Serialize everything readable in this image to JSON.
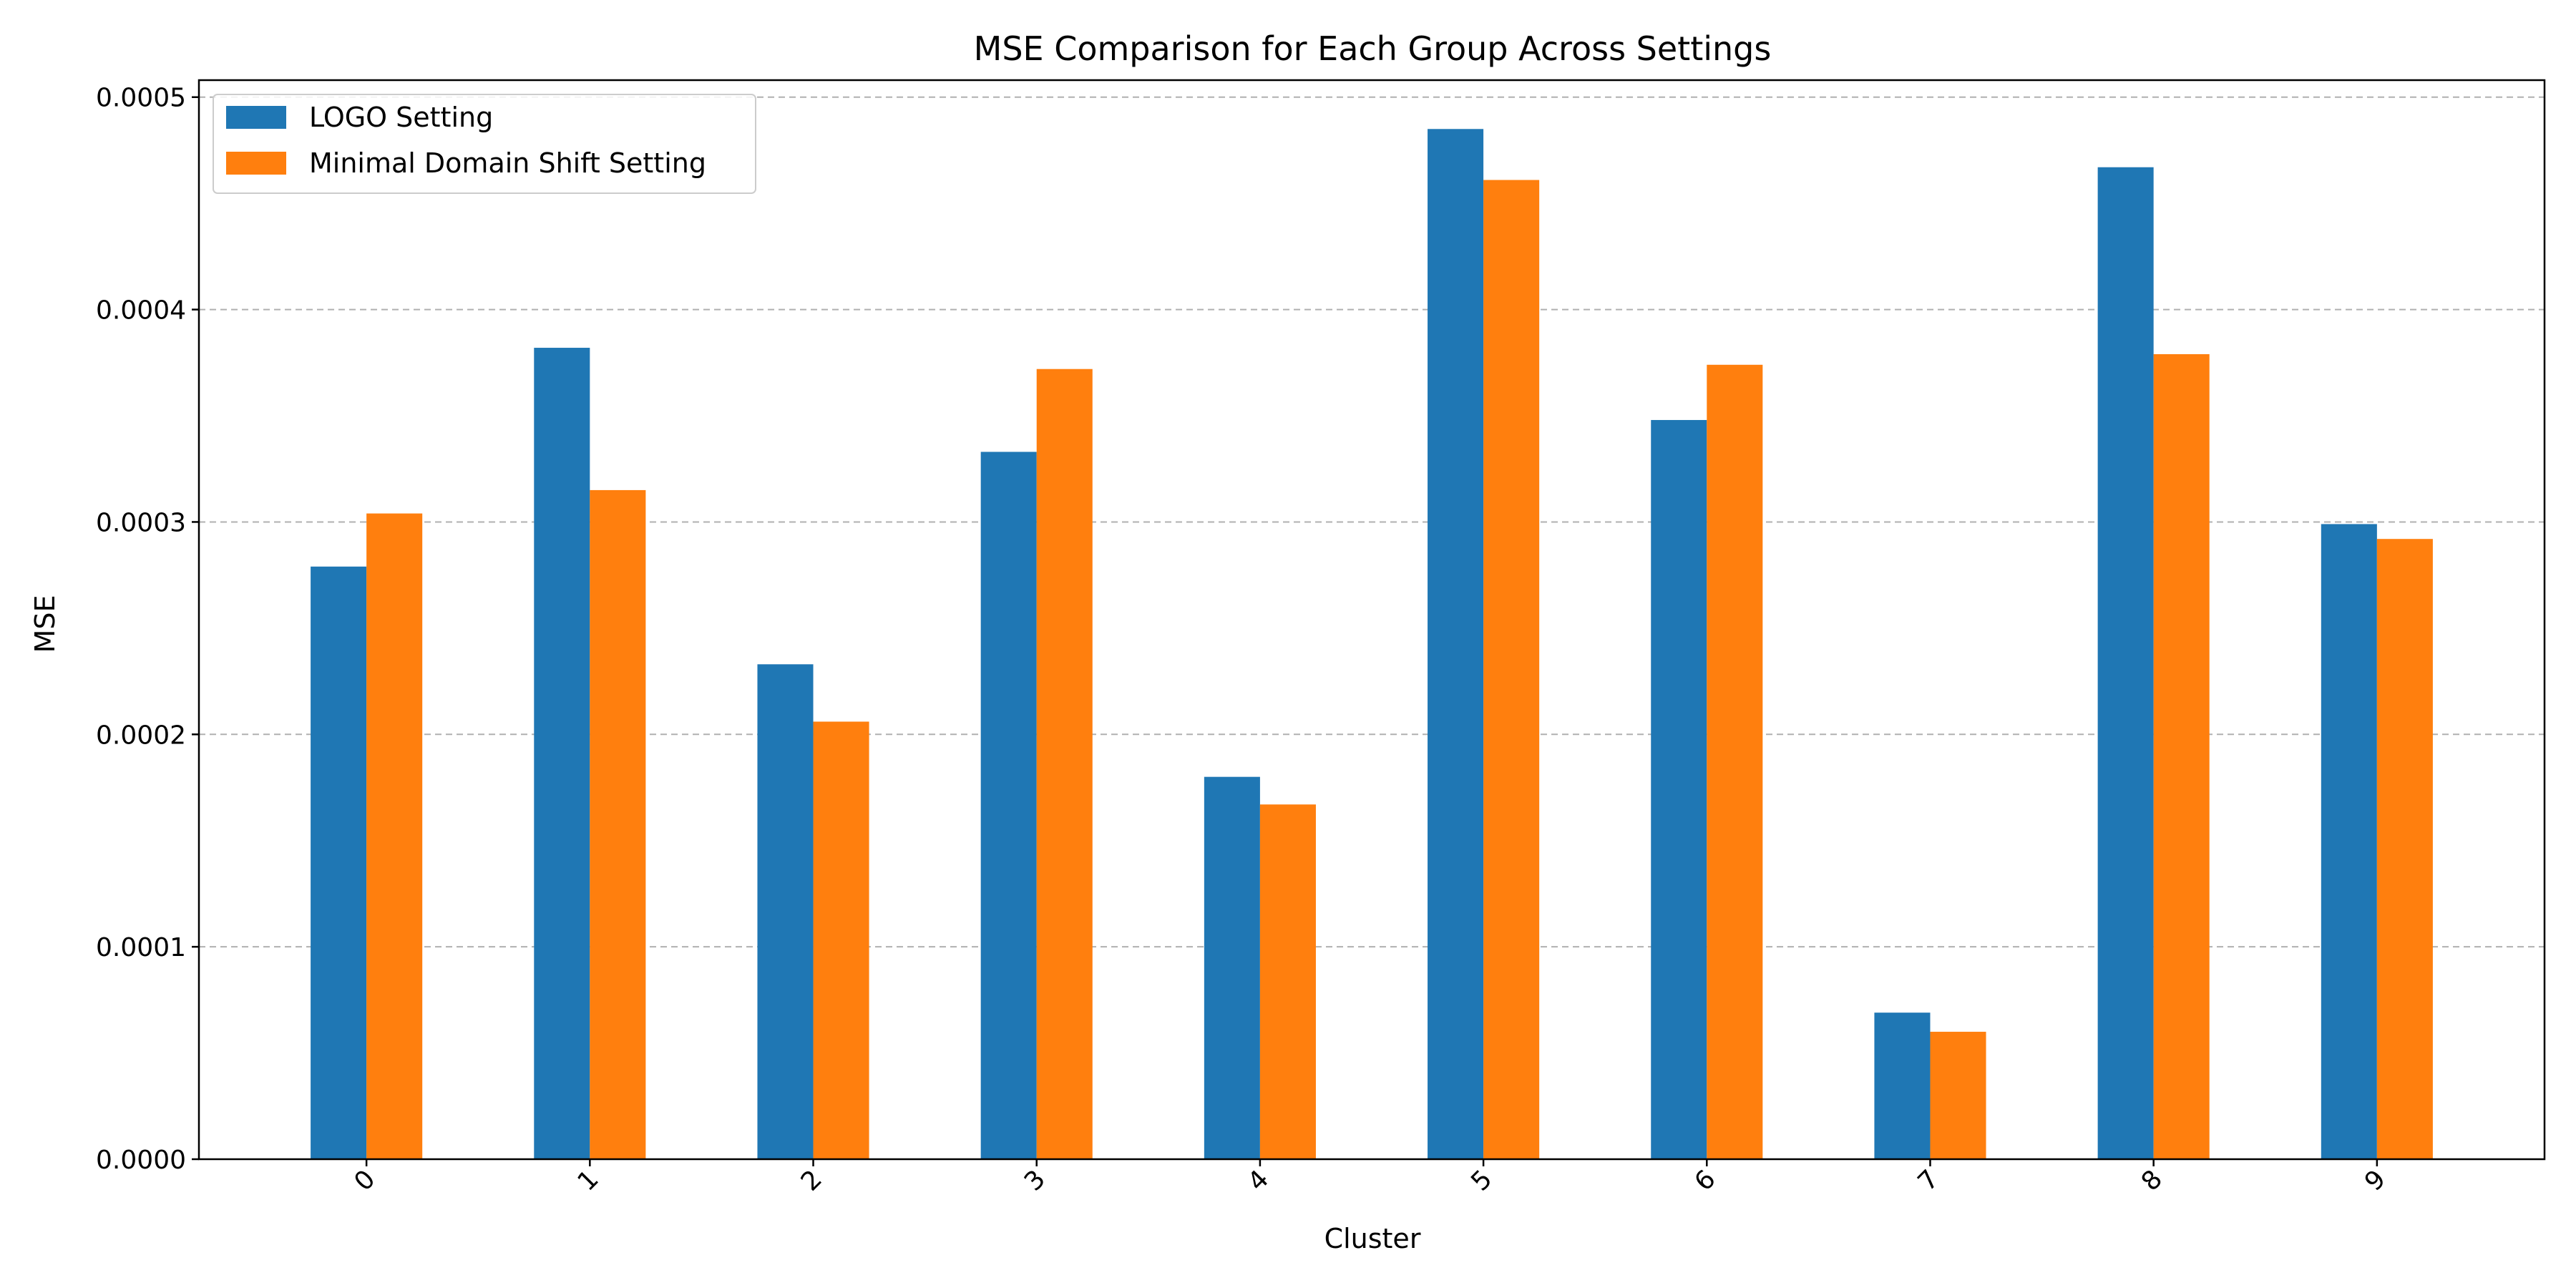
{
  "chart_data": {
    "type": "bar",
    "title": "MSE Comparison for Each Group Across Settings",
    "xlabel": "Cluster",
    "ylabel": "MSE",
    "categories": [
      "0",
      "1",
      "2",
      "3",
      "4",
      "5",
      "6",
      "7",
      "8",
      "9"
    ],
    "series": [
      {
        "name": "LOGO Setting",
        "color": "#1f77b4",
        "values": [
          0.000279,
          0.000382,
          0.000233,
          0.000333,
          0.00018,
          0.000485,
          0.000348,
          6.9e-05,
          0.000467,
          0.000299
        ]
      },
      {
        "name": "Minimal Domain Shift Setting",
        "color": "#ff7f0e",
        "values": [
          0.000304,
          0.000315,
          0.000206,
          0.000372,
          0.000167,
          0.000461,
          0.000374,
          6e-05,
          0.000379,
          0.000292
        ]
      }
    ],
    "ylim": [
      0,
      0.000508
    ],
    "yticks": [
      0,
      0.0001,
      0.0002,
      0.0003,
      0.0004,
      0.0005
    ],
    "ytick_labels": [
      "0.0000",
      "0.0001",
      "0.0002",
      "0.0003",
      "0.0004",
      "0.0005"
    ],
    "grid": "y-dashed",
    "legend_position": "top-left"
  }
}
